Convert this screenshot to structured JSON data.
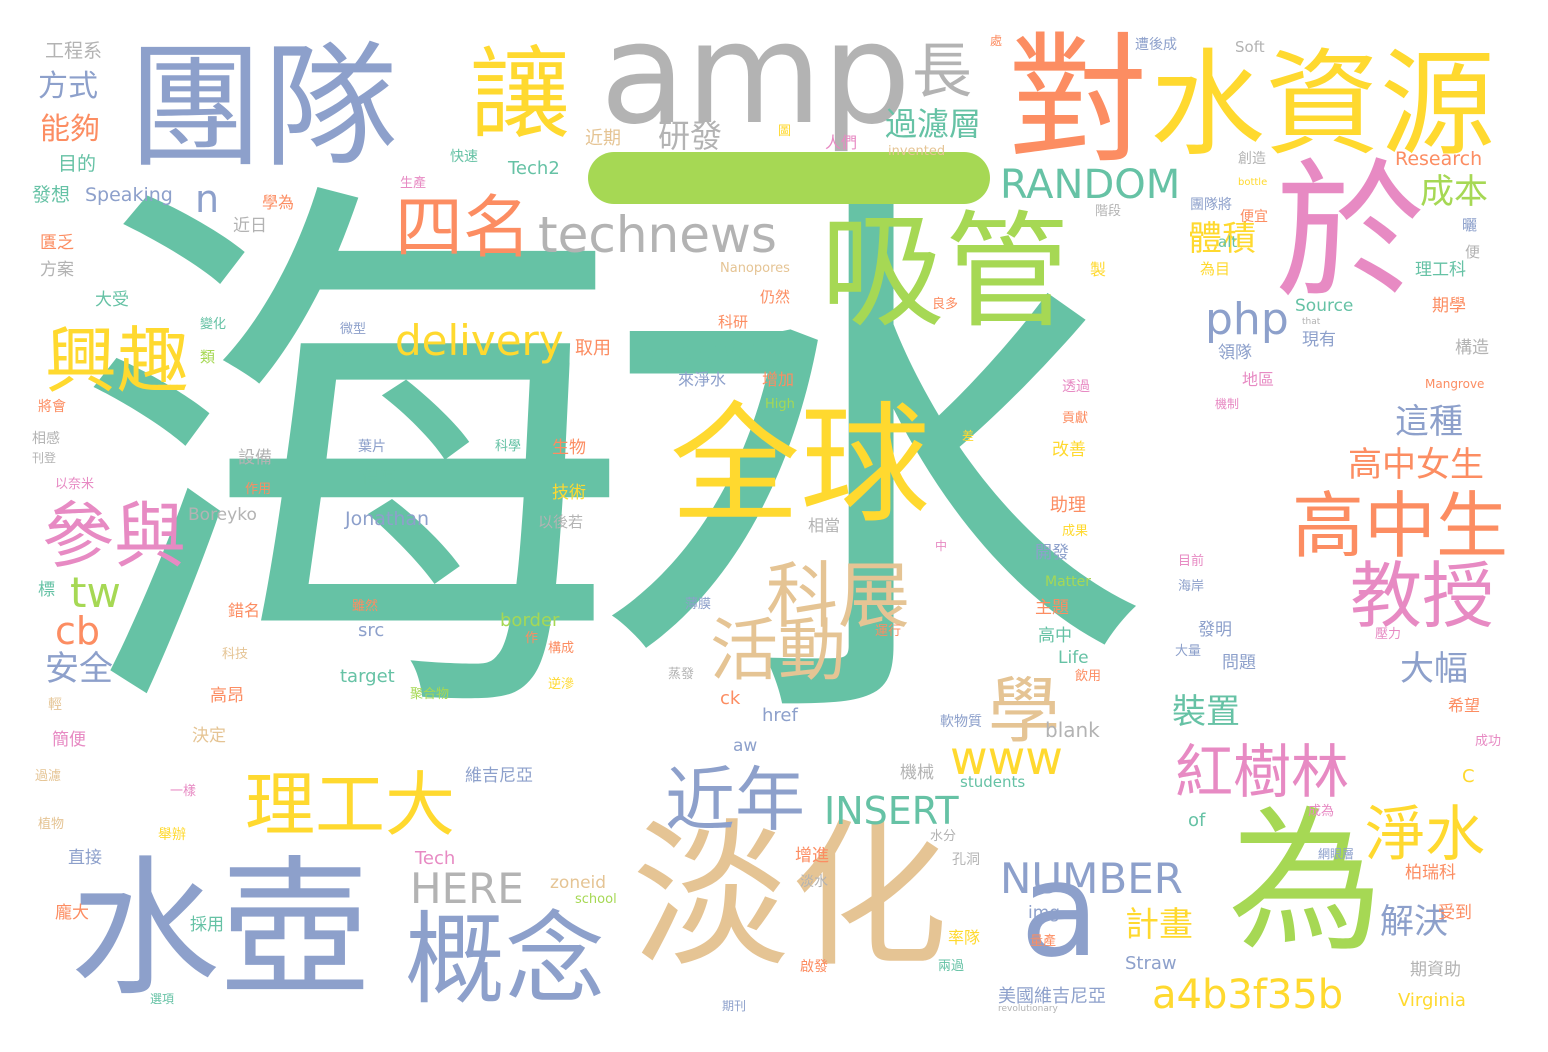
{
  "palette": {
    "teal": "#66c2a5",
    "orange": "#fc8d62",
    "blue": "#8da0cb",
    "pink": "#e78ac3",
    "lime": "#a6d854",
    "yellow": "#ffd92f",
    "tan": "#e5c494",
    "gray": "#b3b3b3"
  },
  "words": [
    {
      "text": "海水",
      "color": "teal"
    },
    {
      "text": "一",
      "color": "lime"
    },
    {
      "text": "團隊",
      "color": "blue"
    },
    {
      "text": "amp",
      "color": "gray"
    },
    {
      "text": "對",
      "color": "orange"
    },
    {
      "text": "水資源",
      "color": "yellow"
    },
    {
      "text": "於",
      "color": "pink"
    },
    {
      "text": "讓",
      "color": "yellow"
    },
    {
      "text": "長",
      "color": "gray"
    },
    {
      "text": "吸管",
      "color": "lime"
    },
    {
      "text": "四名",
      "color": "orange"
    },
    {
      "text": "technews",
      "color": "gray"
    },
    {
      "text": "RANDOM",
      "color": "teal"
    },
    {
      "text": "為",
      "color": "lime"
    },
    {
      "text": "淡化",
      "color": "tan"
    },
    {
      "text": "水壺",
      "color": "blue"
    },
    {
      "text": "概念",
      "color": "blue"
    },
    {
      "text": "a",
      "color": "blue"
    },
    {
      "text": "全球",
      "color": "yellow"
    },
    {
      "text": "興趣",
      "color": "yellow"
    },
    {
      "text": "參與",
      "color": "pink"
    },
    {
      "text": "高中生",
      "color": "orange"
    },
    {
      "text": "教授",
      "color": "pink"
    },
    {
      "text": "科展",
      "color": "tan"
    },
    {
      "text": "活動",
      "color": "tan"
    },
    {
      "text": "學",
      "color": "tan"
    },
    {
      "text": "理工大",
      "color": "yellow"
    },
    {
      "text": "近年",
      "color": "blue"
    },
    {
      "text": "紅樹林",
      "color": "pink"
    },
    {
      "text": "淨水",
      "color": "yellow"
    },
    {
      "text": "delivery",
      "color": "yellow"
    },
    {
      "text": "www5",
      "color": "teal"
    },
    {
      "text": "www",
      "color": "yellow"
    },
    {
      "text": "php",
      "color": "blue"
    },
    {
      "text": "INSERT",
      "color": "teal"
    },
    {
      "text": "NUMBER",
      "color": "blue"
    },
    {
      "text": "HERE",
      "color": "gray"
    },
    {
      "text": "a4b3f35b",
      "color": "yellow"
    },
    {
      "text": "tw",
      "color": "lime"
    },
    {
      "text": "cb",
      "color": "orange"
    },
    {
      "text": "n",
      "color": "blue"
    },
    {
      "text": "研發",
      "color": "gray"
    },
    {
      "text": "過濾層",
      "color": "teal"
    },
    {
      "text": "成本",
      "color": "lime"
    },
    {
      "text": "體積",
      "color": "yellow"
    },
    {
      "text": "這種",
      "color": "blue"
    },
    {
      "text": "高中女生",
      "color": "orange"
    },
    {
      "text": "大幅",
      "color": "blue"
    },
    {
      "text": "裝置",
      "color": "teal"
    },
    {
      "text": "計畫",
      "color": "yellow"
    },
    {
      "text": "解決",
      "color": "blue"
    },
    {
      "text": "安全",
      "color": "blue"
    },
    {
      "text": "方式",
      "color": "blue"
    },
    {
      "text": "能夠",
      "color": "orange"
    },
    {
      "text": "工程系",
      "color": "gray"
    },
    {
      "text": "目的",
      "color": "teal"
    },
    {
      "text": "發想",
      "color": "teal"
    },
    {
      "text": "Speaking",
      "color": "blue"
    },
    {
      "text": "Tech2",
      "color": "teal"
    },
    {
      "text": "近期",
      "color": "tan"
    },
    {
      "text": "快速",
      "color": "teal"
    },
    {
      "text": "人們",
      "color": "pink"
    },
    {
      "text": "invented",
      "color": "tan"
    },
    {
      "text": "Research",
      "color": "orange"
    },
    {
      "text": "Soft",
      "color": "gray"
    },
    {
      "text": "遭後成",
      "color": "blue"
    },
    {
      "text": "創造",
      "color": "gray"
    },
    {
      "text": "bottle",
      "color": "yellow"
    },
    {
      "text": "團隊將",
      "color": "blue"
    },
    {
      "text": "階段",
      "color": "gray"
    },
    {
      "text": "便宜",
      "color": "orange"
    },
    {
      "text": "alt",
      "color": "teal"
    },
    {
      "text": "為目",
      "color": "yellow"
    },
    {
      "text": "理工科",
      "color": "teal"
    },
    {
      "text": "期學",
      "color": "orange"
    },
    {
      "text": "Source",
      "color": "teal"
    },
    {
      "text": "that",
      "color": "gray"
    },
    {
      "text": "現有",
      "color": "blue"
    },
    {
      "text": "領隊",
      "color": "blue"
    },
    {
      "text": "構造",
      "color": "gray"
    },
    {
      "text": "地區",
      "color": "pink"
    },
    {
      "text": "Mangrove",
      "color": "orange"
    },
    {
      "text": "機制",
      "color": "pink"
    },
    {
      "text": "透過",
      "color": "pink"
    },
    {
      "text": "貢獻",
      "color": "orange"
    },
    {
      "text": "改善",
      "color": "yellow"
    },
    {
      "text": "助理",
      "color": "orange"
    },
    {
      "text": "成果",
      "color": "yellow"
    },
    {
      "text": "開發",
      "color": "blue"
    },
    {
      "text": "目前",
      "color": "pink"
    },
    {
      "text": "海岸",
      "color": "blue"
    },
    {
      "text": "Matter",
      "color": "lime"
    },
    {
      "text": "主題",
      "color": "orange"
    },
    {
      "text": "高中",
      "color": "teal"
    },
    {
      "text": "Life",
      "color": "teal"
    },
    {
      "text": "發明",
      "color": "blue"
    },
    {
      "text": "問題",
      "color": "blue"
    },
    {
      "text": "大量",
      "color": "blue"
    },
    {
      "text": "壓力",
      "color": "pink"
    },
    {
      "text": "希望",
      "color": "orange"
    },
    {
      "text": "成功",
      "color": "pink"
    },
    {
      "text": "C",
      "color": "yellow"
    },
    {
      "text": "成為",
      "color": "pink"
    },
    {
      "text": "柏瑞科",
      "color": "orange"
    },
    {
      "text": "網眼層",
      "color": "blue"
    },
    {
      "text": "受到",
      "color": "orange"
    },
    {
      "text": "期資助",
      "color": "gray"
    },
    {
      "text": "Virginia",
      "color": "yellow"
    },
    {
      "text": "Straw",
      "color": "blue"
    },
    {
      "text": "美國維吉尼亞",
      "color": "blue"
    },
    {
      "text": "revolutionary",
      "color": "gray"
    },
    {
      "text": "期刊",
      "color": "blue"
    },
    {
      "text": "兩過",
      "color": "teal"
    },
    {
      "text": "啟發",
      "color": "orange"
    },
    {
      "text": "率隊",
      "color": "yellow"
    },
    {
      "text": "量產",
      "color": "orange"
    },
    {
      "text": "img",
      "color": "blue"
    },
    {
      "text": "孔洞",
      "color": "gray"
    },
    {
      "text": "淡水",
      "color": "gray"
    },
    {
      "text": "水分",
      "color": "gray"
    },
    {
      "text": "of",
      "color": "teal"
    },
    {
      "text": "students",
      "color": "teal"
    },
    {
      "text": "blank",
      "color": "gray"
    },
    {
      "text": "軟物質",
      "color": "blue"
    },
    {
      "text": "機械",
      "color": "gray"
    },
    {
      "text": "增進",
      "color": "orange"
    },
    {
      "text": "zoneid",
      "color": "tan"
    },
    {
      "text": "school",
      "color": "lime"
    },
    {
      "text": "Tech",
      "color": "pink"
    },
    {
      "text": "維吉尼亞",
      "color": "blue"
    },
    {
      "text": "aw",
      "color": "blue"
    },
    {
      "text": "href",
      "color": "blue"
    },
    {
      "text": "ck",
      "color": "orange"
    },
    {
      "text": "聚合物",
      "color": "lime"
    },
    {
      "text": "逆滲",
      "color": "yellow"
    },
    {
      "text": "target",
      "color": "teal"
    },
    {
      "text": "src",
      "color": "blue"
    },
    {
      "text": "border",
      "color": "lime"
    },
    {
      "text": "構成",
      "color": "orange"
    },
    {
      "text": "雖然",
      "color": "orange"
    },
    {
      "text": "薄膜",
      "color": "blue"
    },
    {
      "text": "運行",
      "color": "orange"
    },
    {
      "text": "蒸發",
      "color": "gray"
    },
    {
      "text": "飲用",
      "color": "orange"
    },
    {
      "text": "中",
      "color": "pink"
    },
    {
      "text": "相當",
      "color": "gray"
    },
    {
      "text": "以後若",
      "color": "gray"
    },
    {
      "text": "Jonathan",
      "color": "blue"
    },
    {
      "text": "技術",
      "color": "yellow"
    },
    {
      "text": "生物",
      "color": "orange"
    },
    {
      "text": "科學",
      "color": "teal"
    },
    {
      "text": "葉片",
      "color": "blue"
    },
    {
      "text": "倡導",
      "color": "teal"
    },
    {
      "text": "差",
      "color": "yellow"
    },
    {
      "text": "High",
      "color": "lime"
    },
    {
      "text": "增加",
      "color": "orange"
    },
    {
      "text": "來淨水",
      "color": "blue"
    },
    {
      "text": "取用",
      "color": "orange"
    },
    {
      "text": "微型",
      "color": "blue"
    },
    {
      "text": "取水",
      "color": "teal"
    },
    {
      "text": "科研",
      "color": "orange"
    },
    {
      "text": "仍然",
      "color": "orange"
    },
    {
      "text": "Nanopores",
      "color": "tan"
    },
    {
      "text": "良多",
      "color": "orange"
    },
    {
      "text": "製",
      "color": "yellow"
    },
    {
      "text": "圖",
      "color": "yellow"
    },
    {
      "text": "生產",
      "color": "pink"
    },
    {
      "text": "學為",
      "color": "orange"
    },
    {
      "text": "近日",
      "color": "gray"
    },
    {
      "text": "匱乏",
      "color": "orange"
    },
    {
      "text": "方案",
      "color": "gray"
    },
    {
      "text": "大受",
      "color": "teal"
    },
    {
      "text": "變化",
      "color": "teal"
    },
    {
      "text": "類",
      "color": "lime"
    },
    {
      "text": "將會",
      "color": "orange"
    },
    {
      "text": "相感",
      "color": "gray"
    },
    {
      "text": "刊登",
      "color": "gray"
    },
    {
      "text": "以奈米",
      "color": "pink"
    },
    {
      "text": "設備",
      "color": "gray"
    },
    {
      "text": "作用",
      "color": "orange"
    },
    {
      "text": "Boreyko",
      "color": "gray"
    },
    {
      "text": "標",
      "color": "teal"
    },
    {
      "text": "錯名",
      "color": "orange"
    },
    {
      "text": "科技",
      "color": "tan"
    },
    {
      "text": "高昂",
      "color": "orange"
    },
    {
      "text": "輕",
      "color": "tan"
    },
    {
      "text": "簡便",
      "color": "pink"
    },
    {
      "text": "決定",
      "color": "tan"
    },
    {
      "text": "過濾",
      "color": "tan"
    },
    {
      "text": "一樣",
      "color": "pink"
    },
    {
      "text": "植物",
      "color": "tan"
    },
    {
      "text": "舉辦",
      "color": "yellow"
    },
    {
      "text": "直接",
      "color": "blue"
    },
    {
      "text": "龐大",
      "color": "orange"
    },
    {
      "text": "採用",
      "color": "teal"
    },
    {
      "text": "選項",
      "color": "teal"
    },
    {
      "text": "作",
      "color": "orange"
    },
    {
      "text": "處",
      "color": "orange"
    },
    {
      "text": "曬",
      "color": "blue"
    },
    {
      "text": "便",
      "color": "gray"
    }
  ]
}
